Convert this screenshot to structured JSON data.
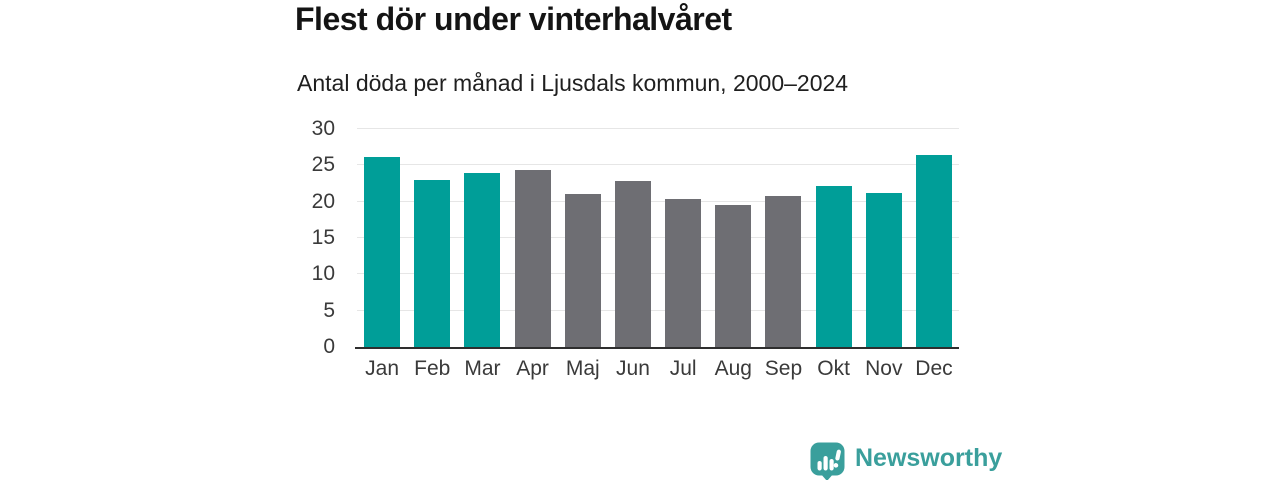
{
  "title": "Flest dör under vinterhalvåret",
  "subtitle": "Antal döda per månad i Ljusdals kommun, 2000–2024",
  "chart_data": {
    "type": "bar",
    "title": "Flest dör under vinterhalvåret",
    "subtitle": "Antal döda per månad i Ljusdals kommun, 2000–2024",
    "categories": [
      "Jan",
      "Feb",
      "Mar",
      "Apr",
      "Maj",
      "Jun",
      "Jul",
      "Aug",
      "Sep",
      "Okt",
      "Nov",
      "Dec"
    ],
    "values": [
      26.1,
      23.0,
      24.0,
      24.4,
      21.1,
      22.9,
      20.4,
      19.6,
      20.8,
      22.2,
      21.2,
      26.4
    ],
    "bar_colors": [
      "#009e98",
      "#009e98",
      "#009e98",
      "#6e6e73",
      "#6e6e73",
      "#6e6e73",
      "#6e6e73",
      "#6e6e73",
      "#6e6e73",
      "#009e98",
      "#009e98",
      "#009e98"
    ],
    "xlabel": "",
    "ylabel": "",
    "ylim": [
      0,
      30
    ],
    "yticks": [
      0,
      5,
      10,
      15,
      20,
      25,
      30
    ],
    "grid": true,
    "legend": "none"
  },
  "branding": {
    "logo_text": "Newsworthy",
    "logo_icon": "newsworthy-speech-bubble-bar-chart-icon",
    "logo_color": "#3a9f9c"
  },
  "colors": {
    "winter_bar": "#009e98",
    "summer_bar": "#6e6e73",
    "gridline": "#e6e6e6",
    "axis_line": "#2e2e2e",
    "title_text": "#141414",
    "tick_text": "#3a3a3a"
  }
}
